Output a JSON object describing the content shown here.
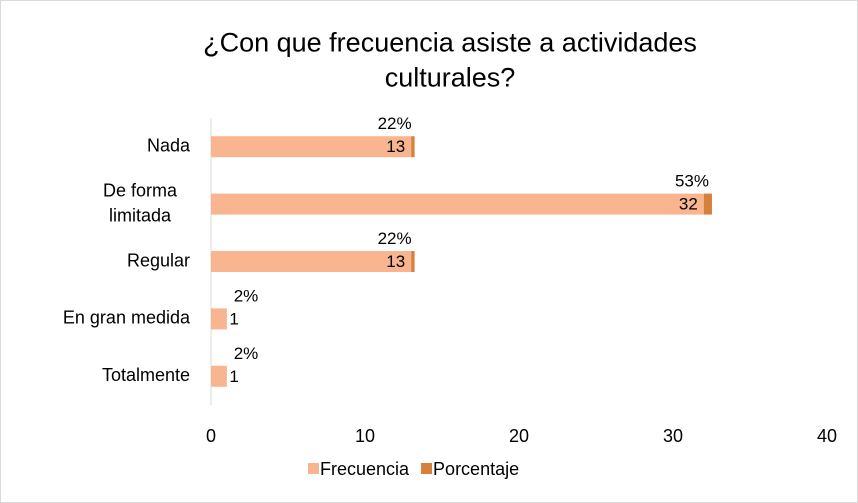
{
  "chart_data": {
    "type": "stacked_barh",
    "title": "¿Con que frecuencia asiste a actividades culturales?",
    "categories": [
      "Nada",
      "De forma limitada",
      "Regular",
      "En gran medida",
      "Totalmente"
    ],
    "series": [
      {
        "name": "Frecuencia",
        "color": "#f8b58f",
        "values": [
          13,
          32,
          13,
          1,
          1
        ]
      },
      {
        "name": "Porcentaje",
        "color": "#d7803c",
        "values": [
          0.22,
          0.53,
          0.22,
          0.02,
          0.02
        ],
        "value_labels": [
          "22%",
          "53%",
          "22%",
          "2%",
          "2%"
        ]
      }
    ],
    "xlim": [
      0,
      40
    ],
    "xticks": [
      0,
      10,
      20,
      30,
      40
    ],
    "legend": "bottom"
  }
}
